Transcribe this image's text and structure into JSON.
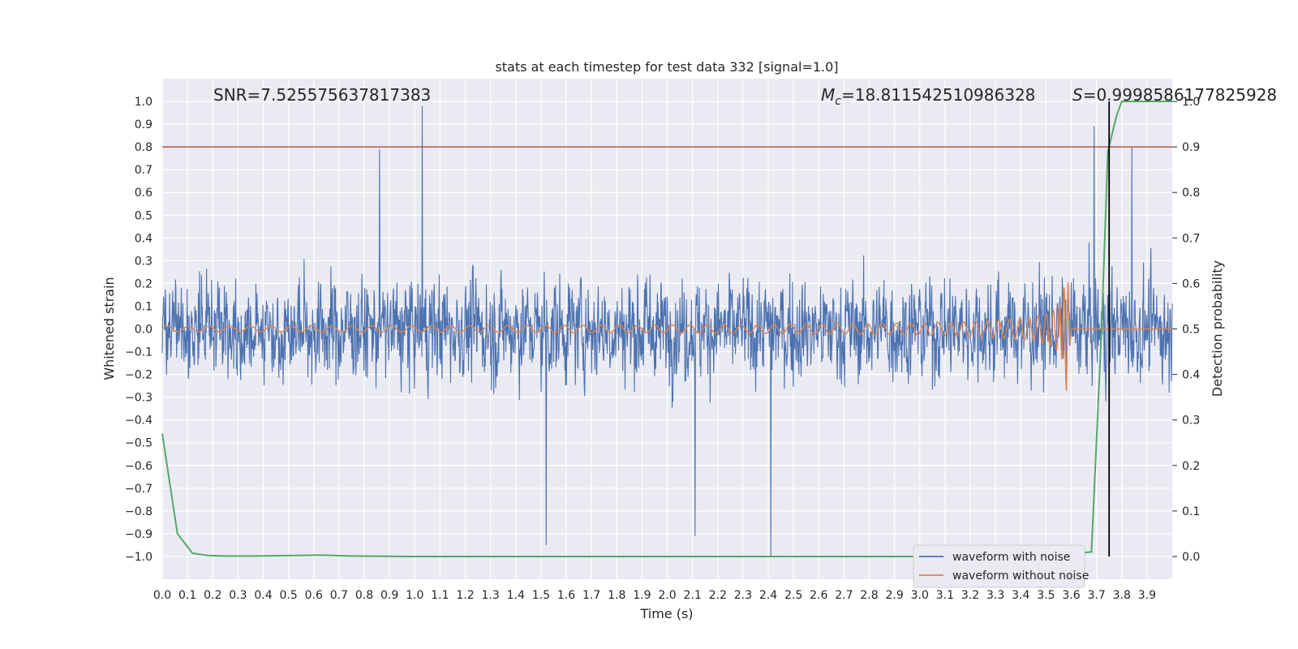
{
  "chart_data": {
    "type": "line",
    "title": "stats at each timestep for test data 332 [signal=1.0]",
    "xlabel": "Time (s)",
    "ylabel": "Whitened strain",
    "y2label": "Detection probability",
    "xlim": [
      0.0,
      4.0
    ],
    "ylim": [
      -1.1,
      1.1
    ],
    "y2lim": [
      -0.05,
      1.05
    ],
    "xticks": [
      "0.0",
      "0.1",
      "0.2",
      "0.3",
      "0.4",
      "0.5",
      "0.6",
      "0.7",
      "0.8",
      "0.9",
      "1.0",
      "1.1",
      "1.2",
      "1.3",
      "1.4",
      "1.5",
      "1.6",
      "1.7",
      "1.8",
      "1.9",
      "2.0",
      "2.1",
      "2.2",
      "2.3",
      "2.4",
      "2.5",
      "2.6",
      "2.7",
      "2.8",
      "2.9",
      "3.0",
      "3.1",
      "3.2",
      "3.3",
      "3.4",
      "3.5",
      "3.6",
      "3.7",
      "3.8",
      "3.9"
    ],
    "yticks": [
      "1.0",
      "0.9",
      "0.8",
      "0.7",
      "0.6",
      "0.5",
      "0.4",
      "0.3",
      "0.2",
      "0.1",
      "0.0",
      "−0.1",
      "−0.2",
      "−0.3",
      "−0.4",
      "−0.5",
      "−0.6",
      "−0.7",
      "−0.8",
      "−0.9",
      "−1.0"
    ],
    "y2ticks": [
      "1.0",
      "0.9",
      "0.8",
      "0.7",
      "0.6",
      "0.5",
      "0.4",
      "0.3",
      "0.2",
      "0.1",
      "0.0"
    ],
    "grid": true,
    "background": "#eaeaf2",
    "legend_position": "bottom-right",
    "series": [
      {
        "name": "waveform with noise",
        "color": "#4c72b0",
        "axis": "left",
        "noise_envelope": {
          "typical_peak": 0.55,
          "max_abs": 1.0
        },
        "peaks": [
          {
            "x": 0.86,
            "y": 0.79
          },
          {
            "x": 1.03,
            "y": 0.98
          },
          {
            "x": 1.52,
            "y": -0.95
          },
          {
            "x": 2.11,
            "y": -0.91
          },
          {
            "x": 2.41,
            "y": -1.0
          },
          {
            "x": 3.69,
            "y": 0.89
          },
          {
            "x": 3.84,
            "y": 0.8
          }
        ]
      },
      {
        "name": "waveform without noise",
        "color": "#dd8452",
        "axis": "left",
        "chirp": {
          "start_freq_hz": 12,
          "end_freq_hz": 60,
          "amp_start": 0.012,
          "amp_peak": 0.34,
          "merger_time": 3.58,
          "ringdown_end": 3.6
        }
      },
      {
        "name": "detection probability",
        "color": "#55a868",
        "axis": "right",
        "x": [
          0.0,
          0.06,
          0.12,
          0.18,
          0.25,
          0.37,
          0.62,
          0.75,
          1.0,
          1.5,
          2.0,
          2.5,
          3.0,
          3.5,
          3.68,
          3.72,
          3.745,
          3.78,
          3.8,
          3.85,
          3.9,
          3.95,
          4.0
        ],
        "y": [
          0.27,
          0.05,
          0.007,
          0.002,
          0.001,
          0.001,
          0.003,
          0.001,
          0.0,
          0.0,
          0.0,
          0.0,
          0.0,
          0.0,
          0.01,
          0.5,
          0.89,
          0.97,
          1.0,
          1.0,
          1.0,
          1.0,
          1.0
        ]
      }
    ],
    "threshold": {
      "axis": "right",
      "value": 0.9,
      "color": "#c44e52"
    },
    "vline": {
      "x": 3.75,
      "color": "#000000"
    },
    "annotations": {
      "snr": "SNR=7.525575637817383",
      "mc_symbol": "M",
      "mc_sub": "c",
      "mc_value": "=18.811542510986328",
      "s_symbol": "S",
      "s_value": "=0.9998586177825928"
    }
  }
}
